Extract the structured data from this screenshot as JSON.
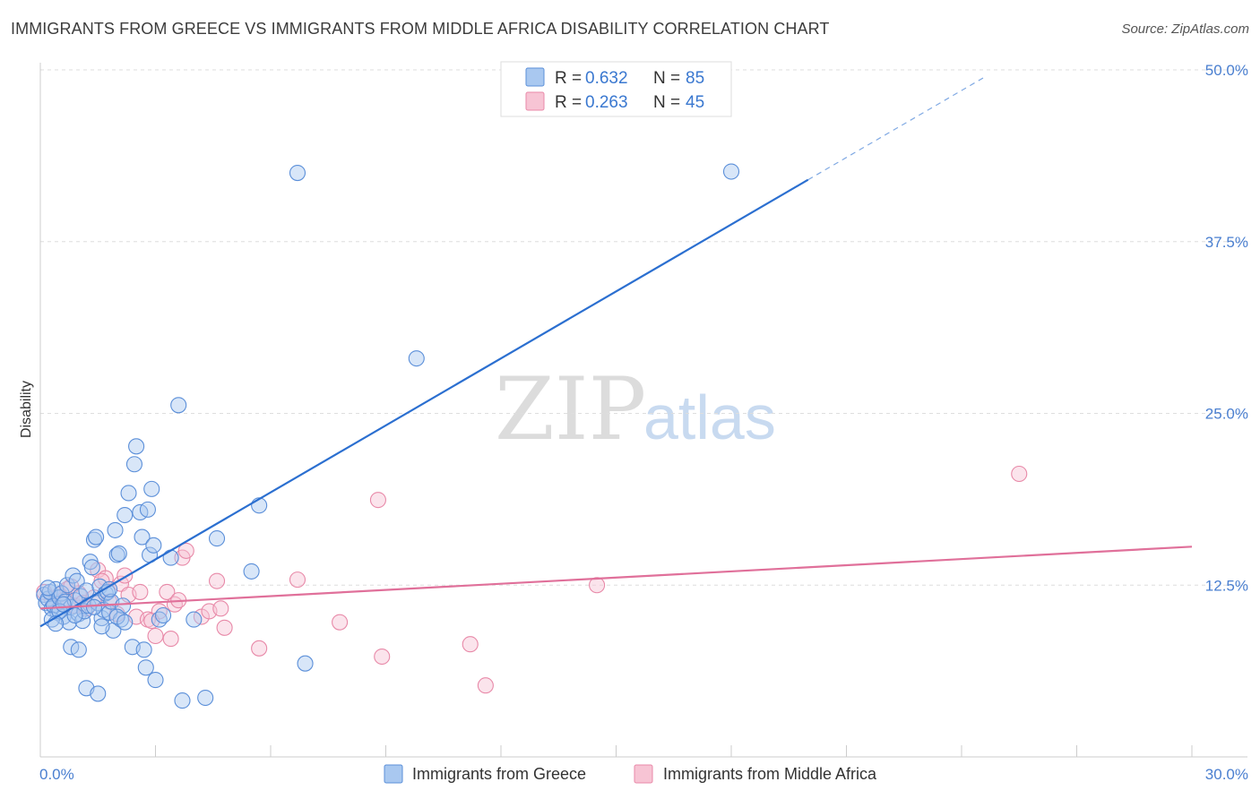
{
  "title": "IMMIGRANTS FROM GREECE VS IMMIGRANTS FROM MIDDLE AFRICA DISABILITY CORRELATION CHART",
  "source": "Source: ZipAtlas.com",
  "watermark": {
    "zip": "ZIP",
    "atlas": "atlas"
  },
  "colors": {
    "blue": "#5b8fd9",
    "blue_fill": "#a9c8f0",
    "blue_line": "#2b6fd0",
    "pink": "#e889a8",
    "pink_fill": "#f7c4d4",
    "pink_line": "#e0709a"
  },
  "legend": {
    "rows": [
      {
        "r_label": "R =",
        "r_value": "0.632",
        "n_label": "N =",
        "n_value": "85"
      },
      {
        "r_label": "R =",
        "r_value": "0.263",
        "n_label": "N =",
        "n_value": "45"
      }
    ]
  },
  "chart_data": {
    "type": "scatter",
    "title": "IMMIGRANTS FROM GREECE VS IMMIGRANTS FROM MIDDLE AFRICA DISABILITY CORRELATION CHART",
    "xlabel": "",
    "ylabel": "Disability",
    "xlim": [
      0,
      30
    ],
    "ylim": [
      0,
      50
    ],
    "x_tick_labels": [
      "0.0%",
      "30.0%"
    ],
    "y_ticks": [
      12.5,
      25.0,
      37.5,
      50.0
    ],
    "y_tick_labels": [
      "12.5%",
      "25.0%",
      "37.5%",
      "50.0%"
    ],
    "grid": true,
    "legend_position": "top-center",
    "series": [
      {
        "name": "Immigrants from Greece",
        "color": "#5b8fd9",
        "trend": {
          "x0": 0.0,
          "y0": 9.5,
          "x1": 20.0,
          "y1": 42.0,
          "dashed_to_x": 24.6
        },
        "points": [
          [
            0.1,
            11.8
          ],
          [
            0.15,
            11.2
          ],
          [
            0.2,
            11.5
          ],
          [
            0.25,
            12.0
          ],
          [
            0.3,
            10.8
          ],
          [
            0.35,
            11.0
          ],
          [
            0.4,
            12.2
          ],
          [
            0.45,
            10.5
          ],
          [
            0.5,
            11.6
          ],
          [
            0.55,
            11.9
          ],
          [
            0.6,
            10.2
          ],
          [
            0.65,
            11.3
          ],
          [
            0.7,
            12.5
          ],
          [
            0.75,
            9.8
          ],
          [
            0.8,
            10.9
          ],
          [
            0.85,
            13.2
          ],
          [
            0.9,
            11.4
          ],
          [
            0.95,
            12.8
          ],
          [
            1.0,
            10.4
          ],
          [
            1.05,
            11.7
          ],
          [
            1.1,
            9.9
          ],
          [
            1.15,
            10.6
          ],
          [
            1.2,
            12.1
          ],
          [
            1.25,
            11.0
          ],
          [
            1.3,
            14.2
          ],
          [
            1.35,
            13.8
          ],
          [
            1.4,
            15.8
          ],
          [
            1.45,
            16.0
          ],
          [
            1.5,
            11.2
          ],
          [
            1.55,
            12.4
          ],
          [
            1.6,
            10.1
          ],
          [
            1.65,
            10.7
          ],
          [
            1.7,
            11.9
          ],
          [
            1.75,
            12.0
          ],
          [
            1.8,
            10.5
          ],
          [
            1.85,
            11.3
          ],
          [
            1.9,
            9.2
          ],
          [
            1.95,
            16.5
          ],
          [
            2.0,
            14.7
          ],
          [
            2.05,
            14.8
          ],
          [
            2.1,
            10.0
          ],
          [
            2.15,
            11.0
          ],
          [
            2.2,
            17.6
          ],
          [
            2.3,
            19.2
          ],
          [
            2.4,
            8.0
          ],
          [
            2.45,
            21.3
          ],
          [
            2.5,
            22.6
          ],
          [
            2.6,
            17.8
          ],
          [
            2.65,
            16.0
          ],
          [
            2.7,
            7.8
          ],
          [
            2.75,
            6.5
          ],
          [
            2.8,
            18.0
          ],
          [
            2.85,
            14.7
          ],
          [
            2.9,
            19.5
          ],
          [
            2.95,
            15.4
          ],
          [
            3.0,
            5.6
          ],
          [
            3.1,
            10.0
          ],
          [
            3.2,
            10.3
          ],
          [
            3.4,
            14.5
          ],
          [
            3.6,
            25.6
          ],
          [
            3.7,
            4.1
          ],
          [
            4.0,
            10.0
          ],
          [
            4.3,
            4.3
          ],
          [
            4.6,
            15.9
          ],
          [
            5.5,
            13.5
          ],
          [
            5.7,
            18.3
          ],
          [
            6.7,
            42.5
          ],
          [
            6.9,
            6.8
          ],
          [
            9.8,
            29.0
          ],
          [
            18.0,
            42.6
          ],
          [
            0.3,
            10.0
          ],
          [
            0.8,
            8.0
          ],
          [
            1.0,
            7.8
          ],
          [
            1.2,
            5.0
          ],
          [
            1.5,
            4.6
          ],
          [
            1.6,
            9.5
          ],
          [
            2.0,
            10.2
          ],
          [
            2.2,
            9.8
          ],
          [
            0.5,
            10.6
          ],
          [
            0.6,
            11.1
          ],
          [
            0.9,
            10.3
          ],
          [
            1.4,
            10.9
          ],
          [
            1.8,
            12.2
          ],
          [
            0.2,
            12.3
          ],
          [
            0.4,
            9.7
          ]
        ]
      },
      {
        "name": "Immigrants from Middle Africa",
        "color": "#e889a8",
        "trend": {
          "x0": 0.0,
          "y0": 10.8,
          "x1": 30.0,
          "y1": 15.3
        },
        "points": [
          [
            0.1,
            12.0
          ],
          [
            0.3,
            11.5
          ],
          [
            0.5,
            11.8
          ],
          [
            0.7,
            12.2
          ],
          [
            0.9,
            11.0
          ],
          [
            1.0,
            11.9
          ],
          [
            1.2,
            10.8
          ],
          [
            1.4,
            11.6
          ],
          [
            1.5,
            13.6
          ],
          [
            1.7,
            13.0
          ],
          [
            1.8,
            11.3
          ],
          [
            2.0,
            10.4
          ],
          [
            2.1,
            12.6
          ],
          [
            2.3,
            11.8
          ],
          [
            2.5,
            10.2
          ],
          [
            2.6,
            12.0
          ],
          [
            2.8,
            10.0
          ],
          [
            3.0,
            8.8
          ],
          [
            3.1,
            10.6
          ],
          [
            3.3,
            12.0
          ],
          [
            3.4,
            8.6
          ],
          [
            3.5,
            11.1
          ],
          [
            3.6,
            11.4
          ],
          [
            3.7,
            14.5
          ],
          [
            3.8,
            15.0
          ],
          [
            4.2,
            10.2
          ],
          [
            4.4,
            10.6
          ],
          [
            4.6,
            12.8
          ],
          [
            4.7,
            10.8
          ],
          [
            4.8,
            9.4
          ],
          [
            5.7,
            7.9
          ],
          [
            6.7,
            12.9
          ],
          [
            7.8,
            9.8
          ],
          [
            8.8,
            18.7
          ],
          [
            8.9,
            7.3
          ],
          [
            11.2,
            8.2
          ],
          [
            11.6,
            5.2
          ],
          [
            14.5,
            12.5
          ],
          [
            25.5,
            20.6
          ],
          [
            0.6,
            11.4
          ],
          [
            0.8,
            12.4
          ],
          [
            1.1,
            11.2
          ],
          [
            1.6,
            12.8
          ],
          [
            2.2,
            13.2
          ],
          [
            2.9,
            9.9
          ]
        ]
      }
    ]
  }
}
